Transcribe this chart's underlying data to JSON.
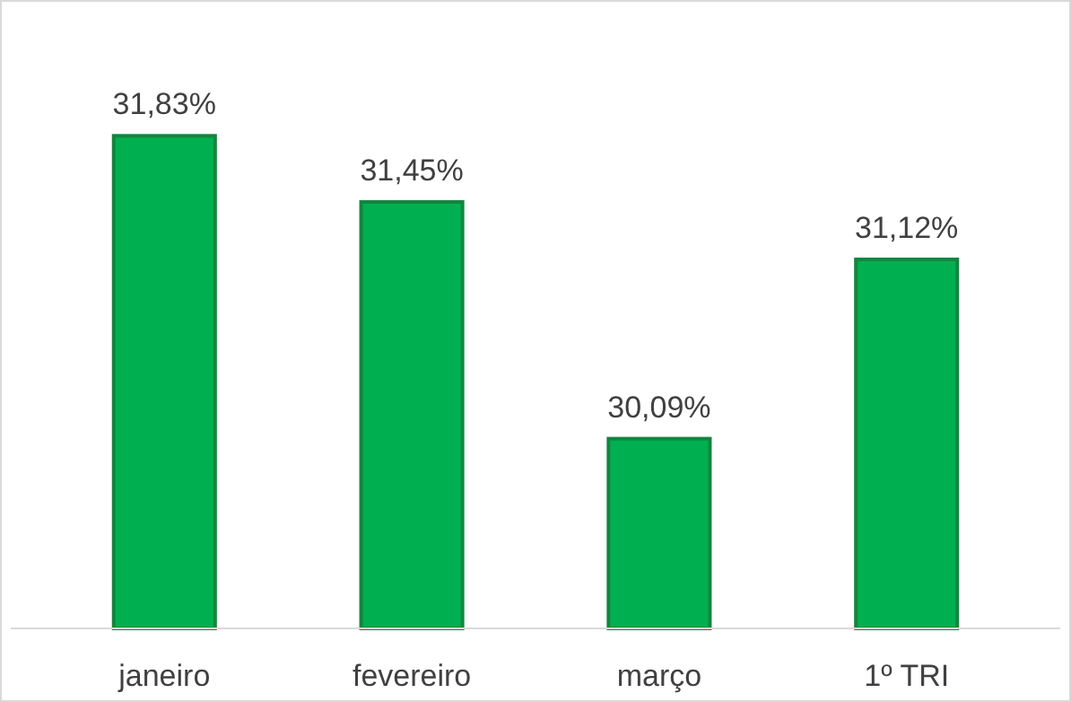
{
  "chart_data": {
    "type": "bar",
    "categories": [
      "janeiro",
      "fevereiro",
      "março",
      "1º TRI"
    ],
    "values": [
      31.83,
      31.45,
      30.09,
      31.12
    ],
    "value_labels": [
      "31,83%",
      "31,45%",
      "30,09%",
      "31,12%"
    ],
    "color": "#00b050",
    "ylim": [
      29,
      32.6
    ],
    "tick_labels": "x"
  }
}
